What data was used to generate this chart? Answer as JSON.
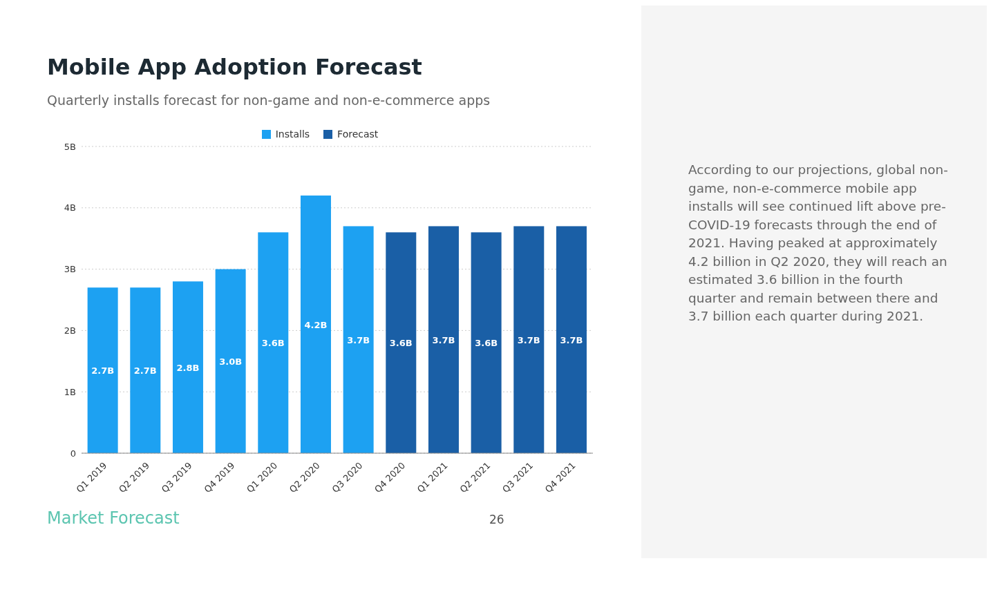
{
  "chart_data": {
    "type": "bar",
    "title": "Mobile App Adoption Forecast",
    "subtitle": "Quarterly installs forecast for non-game and non-e-commerce apps",
    "categories": [
      "Q1 2019",
      "Q2 2019",
      "Q3 2019",
      "Q4 2019",
      "Q1 2020",
      "Q2 2020",
      "Q3 2020",
      "Q4 2020",
      "Q1 2021",
      "Q2 2021",
      "Q3 2021",
      "Q4 2021"
    ],
    "stacked": true,
    "series": [
      {
        "name": "Installs",
        "color": "#1da1f2",
        "values": [
          2.7,
          2.7,
          2.8,
          3.0,
          3.6,
          4.2,
          3.7,
          null,
          null,
          null,
          null,
          null
        ],
        "value_labels": [
          "2.7B",
          "2.7B",
          "2.8B",
          "3.0B",
          "3.6B",
          "4.2B",
          "3.7B",
          null,
          null,
          null,
          null,
          null
        ]
      },
      {
        "name": "Forecast",
        "color": "#1a5fa6",
        "values": [
          null,
          null,
          null,
          null,
          null,
          null,
          null,
          3.6,
          3.7,
          3.6,
          3.7,
          3.7
        ],
        "value_labels": [
          null,
          null,
          null,
          null,
          null,
          null,
          null,
          "3.6B",
          "3.7B",
          "3.6B",
          "3.7B",
          "3.7B"
        ]
      }
    ],
    "ylim": [
      0,
      5
    ],
    "yticks": [
      0,
      {
        "value": 1,
        "label": "1B"
      },
      {
        "value": 2,
        "label": "2B"
      },
      {
        "value": 3,
        "label": "3B"
      },
      {
        "value": 4,
        "label": "4B"
      },
      {
        "value": 5,
        "label": "5B"
      }
    ],
    "grid": "y",
    "legend": "top",
    "annotations": [
      "According to our projections, global non-game, non-e-commerce mobile app installs will see continued lift above pre-COVID-19 forecasts through the end of 2021. Having peaked at approximately 4.2 billion in Q2 2020, they will reach an estimated 3.6 billion in the fourth quarter and remain between there and 3.7 billion each quarter during 2021.",
      "Market Forecast",
      "26"
    ]
  }
}
